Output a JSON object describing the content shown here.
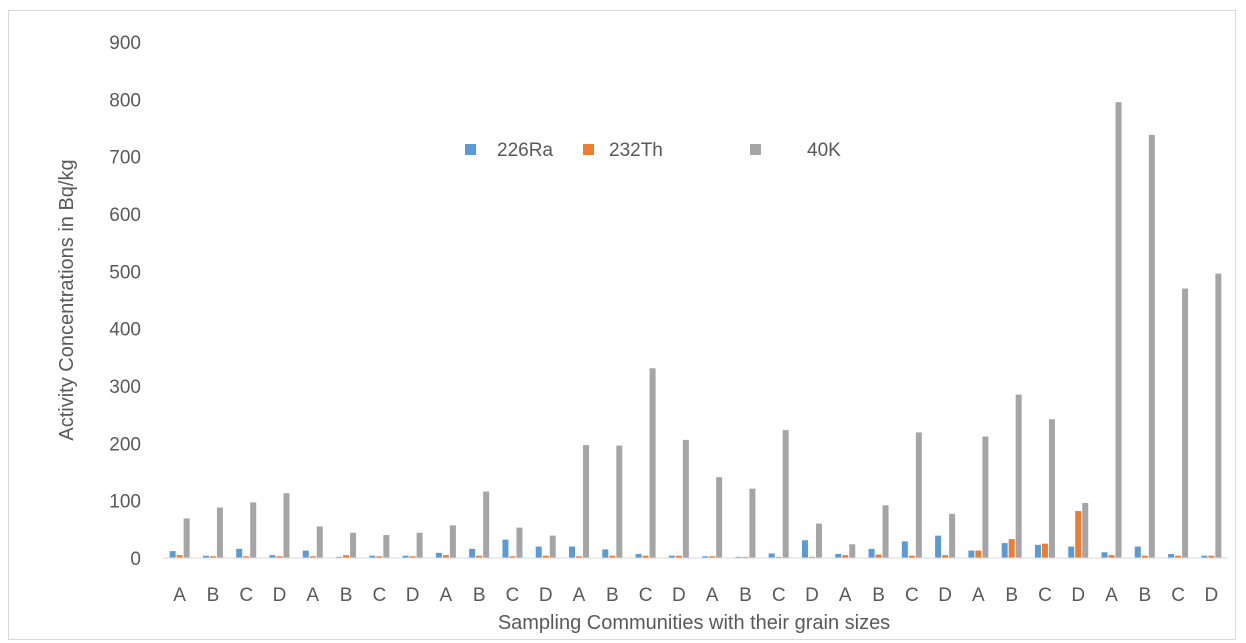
{
  "chart_data": {
    "type": "bar",
    "title": "",
    "xlabel": "Sampling Communities with their grain sizes",
    "ylabel": "Activity Concentrations  in Bq/kg",
    "ylim": [
      0,
      900
    ],
    "yticks": [
      0,
      100,
      200,
      300,
      400,
      500,
      600,
      700,
      800,
      900
    ],
    "grid": false,
    "legend_position": "top-center",
    "categories": [
      "A",
      "B",
      "C",
      "D",
      "A",
      "B",
      "C",
      "D",
      "A",
      "B",
      "C",
      "D",
      "A",
      "B",
      "C",
      "D",
      "A",
      "B",
      "C",
      "D",
      "A",
      "B",
      "C",
      "D",
      "A",
      "B",
      "C",
      "D",
      "A",
      "B",
      "C",
      "D"
    ],
    "series": [
      {
        "name": "226Ra",
        "color": "#5b9bd5",
        "values": [
          12,
          4,
          16,
          5,
          13,
          2,
          4,
          4,
          9,
          16,
          32,
          20,
          20,
          15,
          7,
          4,
          3,
          2,
          8,
          31,
          7,
          16,
          29,
          39,
          13,
          26,
          23,
          20,
          10,
          20,
          7,
          4
        ]
      },
      {
        "name": "232Th",
        "color": "#ed7d31",
        "values": [
          5,
          3,
          3,
          3,
          3,
          5,
          3,
          3,
          5,
          4,
          3,
          4,
          3,
          4,
          4,
          4,
          3,
          2,
          2,
          2,
          5,
          6,
          4,
          5,
          13,
          33,
          25,
          82,
          5,
          4,
          4,
          4
        ]
      },
      {
        "name": "40K",
        "color": "#a5a5a5",
        "values": [
          69,
          88,
          97,
          113,
          55,
          44,
          40,
          44,
          57,
          116,
          53,
          39,
          197,
          196,
          331,
          206,
          141,
          121,
          223,
          60,
          24,
          92,
          219,
          77,
          212,
          285,
          242,
          96,
          795,
          738,
          470,
          496
        ]
      }
    ]
  }
}
